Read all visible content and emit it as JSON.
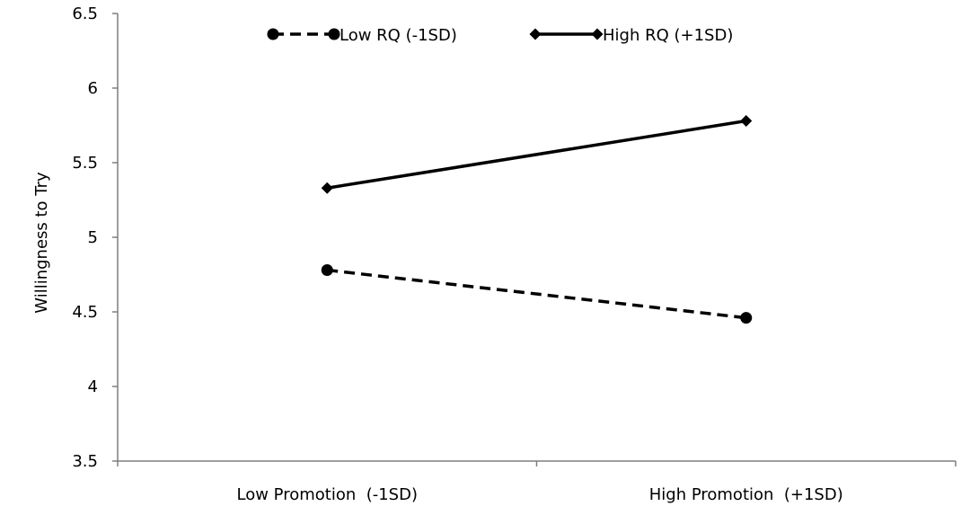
{
  "chart_data": {
    "type": "line",
    "categories": [
      "Low Promotion  (-1SD)",
      "High Promotion  (+1SD)"
    ],
    "series": [
      {
        "name": "Low RQ (-1SD)",
        "values": [
          4.78,
          4.46
        ],
        "style": "dashed",
        "marker": "circle",
        "color": "#000000"
      },
      {
        "name": "High RQ (+1SD)",
        "values": [
          5.33,
          5.78
        ],
        "style": "solid",
        "marker": "diamond",
        "color": "#000000"
      }
    ],
    "xlabel": "",
    "ylabel": "Willingness to Try",
    "ylim": [
      3.5,
      6.5
    ],
    "yticks": [
      "3.5",
      "4",
      "4.5",
      "5",
      "5.5",
      "6",
      "6.5"
    ],
    "legend_position": "top",
    "grid": false
  }
}
